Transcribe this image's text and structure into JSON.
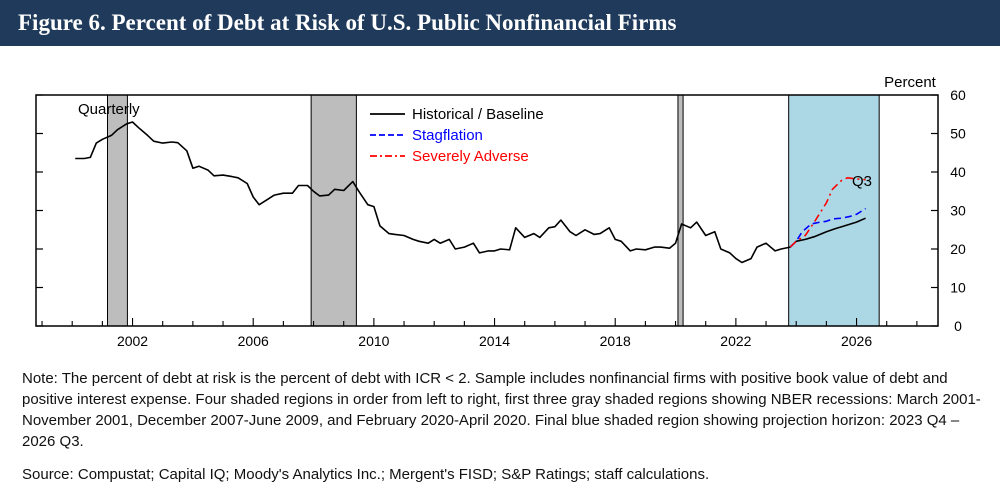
{
  "title": "Figure 6. Percent of Debt at Risk of U.S. Public Nonfinancial Firms",
  "note": "Note: The percent of debt at risk is the percent of debt with ICR < 2. Sample includes nonfinancial firms with positive book value of debt and positive interest expense. Four shaded regions in order from left to right, first three gray shaded regions showing NBER recessions: March 2001-November 2001, December 2007-June 2009, and February 2020-April 2020. Final blue shaded region showing projection horizon: 2023 Q4 – 2026 Q3.",
  "source": "Source: Compustat; Capital IQ; Moody's Analytics Inc.; Mergent's FISD; S&P Ratings; staff calculations.",
  "colors": {
    "title_bg": "#1f3a5a",
    "recession": "#bdbdbd",
    "projection": "#acd8e6",
    "baseline": "#000000",
    "stagflation": "#0000ff",
    "severe": "#ff0000"
  },
  "chart_data": {
    "type": "line",
    "frequency_label": "Quarterly",
    "ylabel": "Percent",
    "end_label": "Q3",
    "ylim": [
      0,
      60
    ],
    "yticks": [
      0,
      10,
      20,
      30,
      40,
      50,
      60
    ],
    "xlim": [
      1998.8,
      2028.7
    ],
    "xticks": [
      2002,
      2006,
      2010,
      2014,
      2018,
      2022,
      2026
    ],
    "legend_position": "top-center",
    "shaded_regions": [
      {
        "kind": "recession",
        "start": 2001.17,
        "end": 2001.83
      },
      {
        "kind": "recession",
        "start": 2007.92,
        "end": 2009.42
      },
      {
        "kind": "recession",
        "start": 2020.08,
        "end": 2020.25
      },
      {
        "kind": "projection",
        "start": 2023.75,
        "end": 2026.75
      }
    ],
    "series": [
      {
        "name": "Historical / Baseline",
        "style": "solid",
        "color": "#000000",
        "x": [
          2000.1,
          2000.4,
          2000.6,
          2000.8,
          2001.0,
          2001.3,
          2001.5,
          2001.8,
          2002.0,
          2002.2,
          2002.5,
          2002.7,
          2003.0,
          2003.3,
          2003.5,
          2003.8,
          2004.0,
          2004.2,
          2004.5,
          2004.7,
          2005.0,
          2005.3,
          2005.5,
          2005.8,
          2006.0,
          2006.2,
          2006.5,
          2006.7,
          2007.0,
          2007.3,
          2007.5,
          2007.8,
          2008.0,
          2008.2,
          2008.5,
          2008.7,
          2009.0,
          2009.3,
          2009.5,
          2009.8,
          2010.0,
          2010.2,
          2010.5,
          2010.7,
          2011.0,
          2011.3,
          2011.5,
          2011.8,
          2012.0,
          2012.2,
          2012.5,
          2012.7,
          2013.0,
          2013.3,
          2013.5,
          2013.8,
          2014.0,
          2014.2,
          2014.5,
          2014.7,
          2015.0,
          2015.3,
          2015.5,
          2015.8,
          2016.0,
          2016.2,
          2016.5,
          2016.7,
          2017.0,
          2017.3,
          2017.5,
          2017.8,
          2018.0,
          2018.2,
          2018.5,
          2018.7,
          2019.0,
          2019.3,
          2019.5,
          2019.8,
          2020.0,
          2020.2,
          2020.5,
          2020.7,
          2021.0,
          2021.3,
          2021.5,
          2021.8,
          2022.0,
          2022.2,
          2022.5,
          2022.7,
          2023.0,
          2023.3,
          2023.5,
          2023.8,
          2024.0,
          2024.3,
          2024.6,
          2025.0,
          2025.3,
          2025.6,
          2026.0,
          2026.3
        ],
        "values": [
          43.5,
          43.5,
          43.8,
          47.5,
          48.5,
          49.5,
          51.0,
          52.5,
          53.0,
          51.5,
          49.5,
          48.0,
          47.5,
          47.8,
          47.6,
          45.5,
          41.0,
          41.5,
          40.5,
          39.0,
          39.2,
          38.8,
          38.5,
          37.0,
          33.5,
          31.5,
          33.0,
          34.0,
          34.5,
          34.5,
          36.5,
          36.5,
          35.0,
          33.8,
          34.0,
          35.5,
          35.2,
          37.5,
          35.0,
          31.5,
          31.0,
          26.0,
          24.0,
          23.8,
          23.5,
          22.5,
          22.0,
          21.5,
          22.5,
          21.5,
          22.5,
          20.0,
          20.5,
          21.5,
          19.0,
          19.5,
          19.5,
          20.0,
          19.8,
          25.5,
          23.0,
          24.0,
          23.0,
          25.5,
          25.8,
          27.5,
          24.5,
          23.5,
          25.0,
          23.8,
          24.0,
          25.5,
          22.5,
          22.0,
          19.5,
          20.0,
          19.8,
          20.5,
          20.5,
          20.2,
          21.5,
          26.5,
          25.5,
          27.0,
          23.5,
          24.5,
          20.0,
          19.0,
          17.5,
          16.5,
          17.5,
          20.5,
          21.5,
          19.5,
          20.0,
          20.5,
          22.0,
          22.5,
          23.2,
          24.5,
          25.3,
          26.0,
          27.0,
          28.0
        ]
      },
      {
        "name": "Stagflation",
        "style": "dashed",
        "color": "#0000ff",
        "x": [
          2023.8,
          2024.0,
          2024.2,
          2024.5,
          2024.8,
          2025.0,
          2025.2,
          2025.5,
          2025.8,
          2026.0,
          2026.3
        ],
        "values": [
          20.5,
          22.0,
          24.5,
          26.5,
          27.0,
          27.2,
          27.8,
          28.0,
          28.5,
          29.0,
          30.5
        ]
      },
      {
        "name": "Severely Adverse",
        "style": "dashdot",
        "color": "#ff0000",
        "x": [
          2023.8,
          2024.0,
          2024.3,
          2024.6,
          2025.0,
          2025.2,
          2025.5,
          2025.7,
          2026.0,
          2026.3
        ],
        "values": [
          20.5,
          22.0,
          23.5,
          27.0,
          32.0,
          35.5,
          37.8,
          38.5,
          38.2,
          38.0
        ]
      }
    ]
  }
}
